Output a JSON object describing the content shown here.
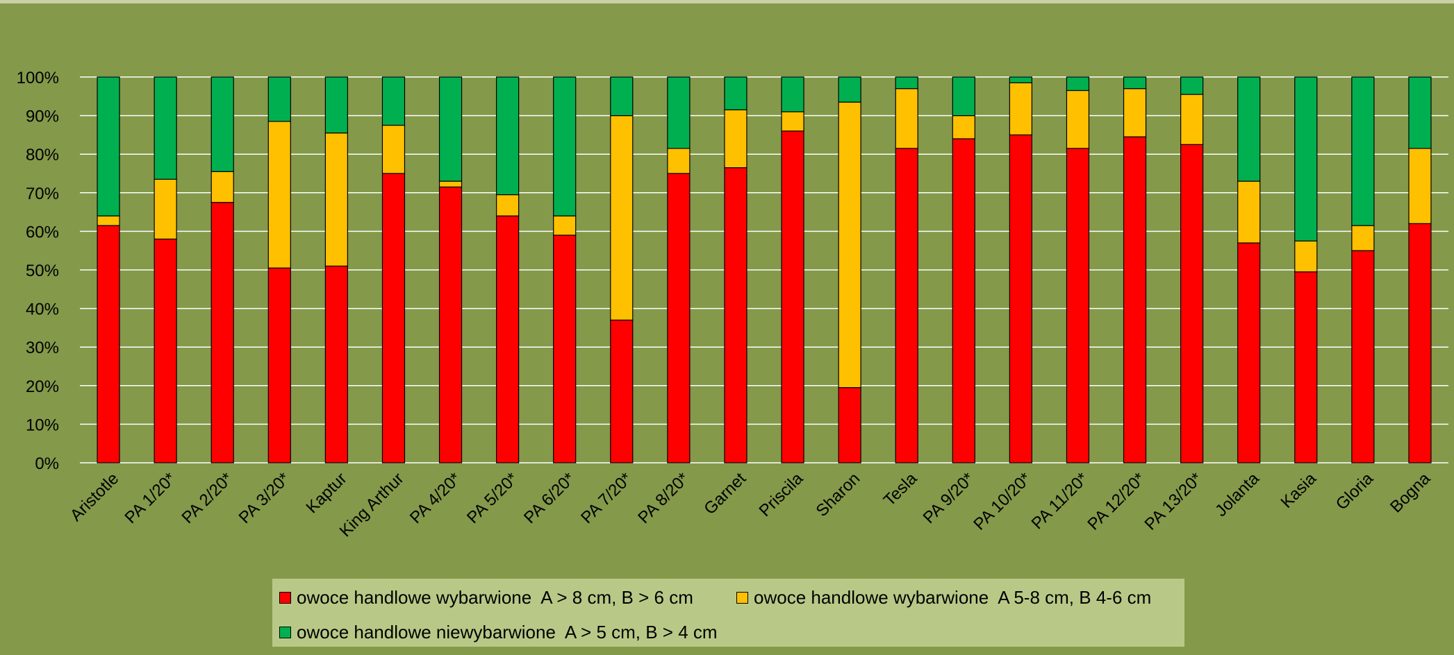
{
  "chart_data": {
    "type": "bar",
    "stacked": true,
    "percent": true,
    "title": "",
    "xlabel": "",
    "ylabel": "",
    "ylim": [
      0,
      100
    ],
    "yticks": [
      "0%",
      "10%",
      "20%",
      "30%",
      "40%",
      "50%",
      "60%",
      "70%",
      "80%",
      "90%",
      "100%"
    ],
    "grid": true,
    "legend_position": "bottom",
    "categories": [
      "Aristotle",
      "PA 1/20*",
      "PA 2/20*",
      "PA 3/20*",
      "Kaptur",
      "King Arthur",
      "PA 4/20*",
      "PA 5/20*",
      "PA 6/20*",
      "PA 7/20*",
      "PA 8/20*",
      "Garnet",
      "Priscila",
      "Sharon",
      "Tesla",
      "PA 9/20*",
      "PA 10/20*",
      "PA 11/20*",
      "PA 12/20*",
      "PA 13/20*",
      "Jolanta",
      "Kasia",
      "Gloria",
      "Bogna"
    ],
    "series": [
      {
        "name": "owoce handlowe wybarwione  A > 8 cm, B > 6 cm",
        "color": "#ff0000",
        "values": [
          61.5,
          58,
          67.5,
          50.5,
          51,
          75,
          71.5,
          64,
          59,
          37,
          75,
          76.5,
          86,
          19.5,
          81.5,
          84,
          85,
          81.5,
          84.5,
          82.5,
          57,
          49.5,
          55,
          62
        ]
      },
      {
        "name": "owoce handlowe wybarwione  A 5-8 cm, B 4-6 cm",
        "color": "#ffc000",
        "values": [
          2.5,
          15.5,
          8,
          38,
          34.5,
          12.5,
          1.5,
          5.5,
          5,
          53,
          6.5,
          15,
          5,
          74,
          15.5,
          6,
          13.5,
          15,
          12.5,
          13,
          16,
          8,
          6.5,
          19.5
        ]
      },
      {
        "name": "owoce handlowe niewybarwione  A > 5 cm, B > 4 cm",
        "color": "#00b050",
        "values": [
          36,
          26.5,
          24.5,
          11.5,
          14.5,
          12.5,
          27,
          30.5,
          36,
          10,
          18.5,
          8.5,
          9,
          6.5,
          3,
          10,
          1.5,
          3.5,
          3,
          4.5,
          27,
          42.5,
          38.5,
          18.5
        ]
      }
    ]
  },
  "colors": {
    "background": "#84994a",
    "legend_background": "#b8c987",
    "gridline": "#ffffff",
    "axis_text": "#000000"
  }
}
